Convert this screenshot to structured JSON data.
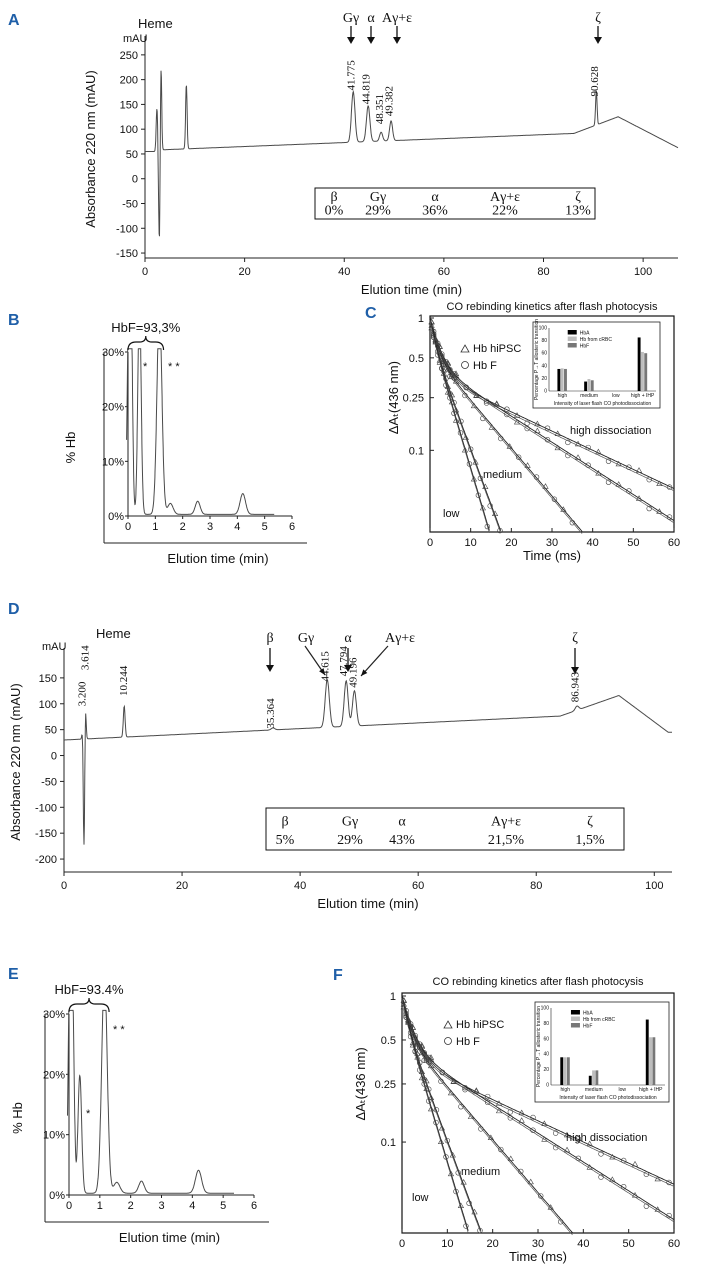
{
  "colors": {
    "panel_label": "#1f5fa8",
    "trace": "#4a4a4a",
    "hba": "#000000",
    "hb_crbc": "#bdbdbd",
    "hbf": "#777777"
  },
  "chart_data": [
    {
      "id": "A",
      "type": "line",
      "panel_label": "A",
      "xlabel": "Elution time (min)",
      "ylabel": "Absorbance 220 nm (mAU)",
      "yunit": "mAU",
      "xlim": [
        0,
        107
      ],
      "ylim": [
        -160,
        280
      ],
      "xticks": [
        "0",
        "20",
        "40",
        "60",
        "80",
        "100"
      ],
      "yticks": [
        "-150",
        "-100",
        "-50",
        "0",
        "50",
        "100",
        "150",
        "200",
        "250"
      ],
      "heme_label": "Heme",
      "peak_labels": [
        "41.775",
        "44.819",
        "48.351",
        "49.382",
        "90.628"
      ],
      "arrows": [
        "Gγ",
        "α",
        "Aγ+ε",
        "ζ"
      ],
      "table": {
        "headers": [
          "β",
          "Gγ",
          "α",
          "Aγ+ε",
          "ζ"
        ],
        "values": [
          "0%",
          "29%",
          "36%",
          "22%",
          "13%"
        ]
      }
    },
    {
      "id": "B",
      "type": "line",
      "panel_label": "B",
      "xlabel": "Elution time (min)",
      "ylabel": "% Hb",
      "xlim": [
        -0.2,
        6
      ],
      "ylim": [
        0,
        30
      ],
      "xticks": [
        "0",
        "1",
        "2",
        "3",
        "4",
        "5",
        "6"
      ],
      "yticks": [
        "0%",
        "10%",
        "20%",
        "30%"
      ],
      "annotation": "HbF=93,3%",
      "star1": "*",
      "star2": "* *"
    },
    {
      "id": "C",
      "type": "scatter",
      "panel_label": "C",
      "title": "CO rebinding kinetics after flash photocysis",
      "xlabel": "Time (ms)",
      "ylabel": "ΔAₜ(436 nm)",
      "xlim": [
        0,
        60
      ],
      "xticks": [
        "0",
        "10",
        "20",
        "30",
        "40",
        "50",
        "60"
      ],
      "yticks": [
        "1",
        "0.5",
        "0.25",
        "0.1"
      ],
      "legend": [
        "Hb hiPSC",
        "Hb F"
      ],
      "curve_labels": [
        "high dissociation",
        "medium",
        "low"
      ],
      "inset": {
        "legend": [
          "HbA",
          "Hb from cRBC",
          "HbF"
        ],
        "ylabel": "Percentage P→T allosteric transition",
        "xlabel": "Intensity of laser flash CO photodissociation",
        "categories": [
          "high",
          "medium",
          "low",
          "high + IHP"
        ],
        "yticks": [
          "0",
          "20",
          "40",
          "60",
          "80",
          "100"
        ],
        "series": [
          {
            "name": "HbA",
            "values": [
              35,
              15,
              0,
              85
            ]
          },
          {
            "name": "Hb from cRBC",
            "values": [
              36,
              19,
              0,
              62
            ]
          },
          {
            "name": "HbF",
            "values": [
              35,
              17,
              0,
              60
            ]
          }
        ]
      }
    },
    {
      "id": "D",
      "type": "line",
      "panel_label": "D",
      "xlabel": "Elution time (min)",
      "ylabel": "Absorbance 220 nm (mAU)",
      "yunit": "mAU",
      "xlim": [
        0,
        103
      ],
      "ylim": [
        -225,
        200
      ],
      "xticks": [
        "0",
        "20",
        "40",
        "60",
        "80",
        "100"
      ],
      "yticks": [
        "-200",
        "-150",
        "-100",
        "-50",
        "0",
        "50",
        "100",
        "150"
      ],
      "heme_label": "Heme",
      "peak_labels": [
        "3.200",
        "3.614",
        "10.244",
        "35.364",
        "44.615",
        "47.794",
        "49.196",
        "86.943"
      ],
      "arrows": [
        "β",
        "Gγ",
        "α",
        "Aγ+ε",
        "ζ"
      ],
      "table": {
        "headers": [
          "β",
          "Gγ",
          "α",
          "Aγ+ε",
          "ζ"
        ],
        "values": [
          "5%",
          "29%",
          "43%",
          "21,5%",
          "1,5%"
        ]
      }
    },
    {
      "id": "E",
      "type": "line",
      "panel_label": "E",
      "xlabel": "Elution time (min)",
      "ylabel": "% Hb",
      "xlim": [
        -0.2,
        6
      ],
      "ylim": [
        0,
        30
      ],
      "xticks": [
        "0",
        "1",
        "2",
        "3",
        "4",
        "5",
        "6"
      ],
      "yticks": [
        "0%",
        "10%",
        "20%",
        "30%"
      ],
      "annotation": "HbF=93.4%",
      "star1": "*",
      "star2": "* *"
    },
    {
      "id": "F",
      "type": "scatter",
      "panel_label": "F",
      "title": "CO rebinding kinetics after flash photocysis",
      "xlabel": "Time (ms)",
      "ylabel": "ΔAₜ(436 nm)",
      "xlim": [
        0,
        60
      ],
      "xticks": [
        "0",
        "10",
        "20",
        "30",
        "40",
        "50",
        "60"
      ],
      "yticks": [
        "1",
        "0.5",
        "0.25",
        "0.1"
      ],
      "legend": [
        "Hb hiPSC",
        "Hb F"
      ],
      "curve_labels": [
        "high dissociation",
        "medium",
        "low"
      ],
      "inset": {
        "legend": [
          "HbA",
          "Hb from cRBC",
          "HbF"
        ],
        "ylabel": "Percentage P→T allosteric transition",
        "xlabel": "Intensity of laser flash CO photodissociation",
        "categories": [
          "high",
          "medium",
          "low",
          "high + IHP"
        ],
        "yticks": [
          "0",
          "20",
          "40",
          "60",
          "80",
          "100"
        ],
        "series": [
          {
            "name": "HbA",
            "values": [
              36,
              12,
              0,
              85
            ]
          },
          {
            "name": "Hb from cRBC",
            "values": [
              36,
              19,
              0,
              62
            ]
          },
          {
            "name": "HbF",
            "values": [
              36,
              19,
              0,
              62
            ]
          }
        ]
      }
    }
  ]
}
